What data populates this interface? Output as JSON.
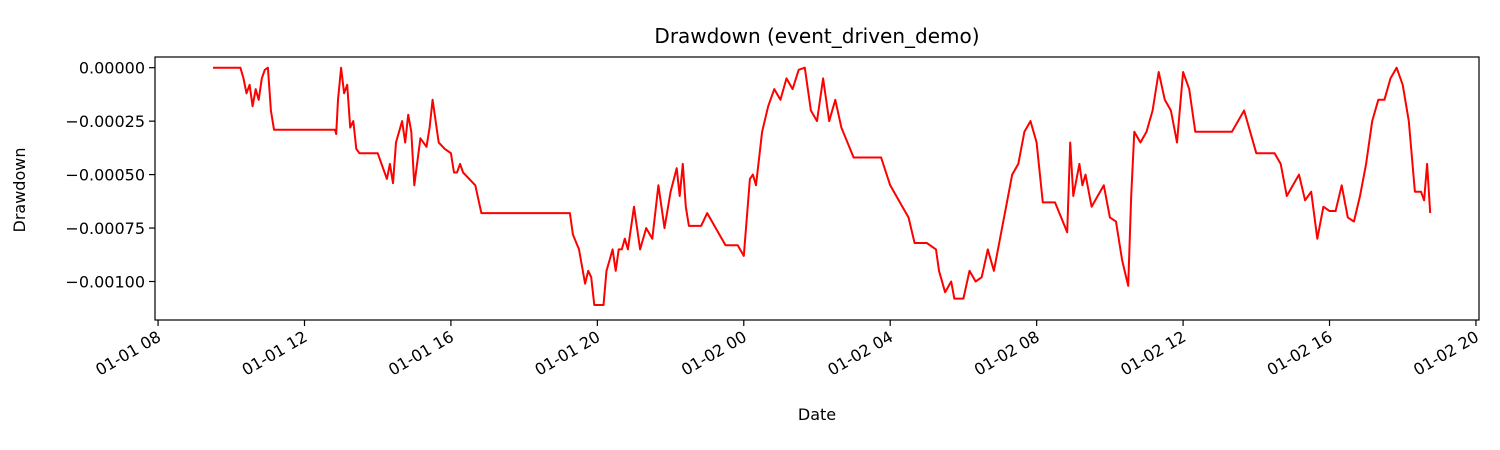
{
  "chart_data": {
    "type": "line",
    "title": "Drawdown (event_driven_demo)",
    "xlabel": "Date",
    "ylabel": "Drawdown",
    "grid": false,
    "legend": "none",
    "x_ticks": [
      "01-01 08",
      "01-01 12",
      "01-01 16",
      "01-01 20",
      "01-02 00",
      "01-02 04",
      "01-02 08",
      "01-02 12",
      "01-02 16",
      "01-02 20"
    ],
    "y_ticks": [
      "0.00000",
      "−0.00025",
      "−0.00050",
      "−0.00075",
      "−0.00100"
    ],
    "xlim": [
      "01-01 07:55",
      "01-02 20:05"
    ],
    "ylim": [
      -0.00118,
      5e-05
    ],
    "series": [
      {
        "color": "#ff0000",
        "x": [
          "01-01 09:30",
          "01-01 10:15",
          "01-01 10:20",
          "01-01 10:25",
          "01-01 10:30",
          "01-01 10:35",
          "01-01 10:40",
          "01-01 10:45",
          "01-01 10:50",
          "01-01 10:55",
          "01-01 11:00",
          "01-01 11:05",
          "01-01 11:10",
          "01-01 11:15",
          "01-01 12:50",
          "01-01 12:52",
          "01-01 12:55",
          "01-01 13:00",
          "01-01 13:05",
          "01-01 13:10",
          "01-01 13:15",
          "01-01 13:20",
          "01-01 13:25",
          "01-01 13:30",
          "01-01 14:00",
          "01-01 14:10",
          "01-01 14:15",
          "01-01 14:20",
          "01-01 14:25",
          "01-01 14:30",
          "01-01 14:40",
          "01-01 14:45",
          "01-01 14:50",
          "01-01 14:55",
          "01-01 15:00",
          "01-01 15:10",
          "01-01 15:20",
          "01-01 15:25",
          "01-01 15:30",
          "01-01 15:40",
          "01-01 15:50",
          "01-01 16:00",
          "01-01 16:05",
          "01-01 16:10",
          "01-01 16:15",
          "01-01 16:20",
          "01-01 16:40",
          "01-01 16:50",
          "01-01 17:00",
          "01-01 19:15",
          "01-01 19:20",
          "01-01 19:30",
          "01-01 19:40",
          "01-01 19:45",
          "01-01 19:50",
          "01-01 19:55",
          "01-01 20:00",
          "01-01 20:10",
          "01-01 20:15",
          "01-01 20:20",
          "01-01 20:25",
          "01-01 20:30",
          "01-01 20:35",
          "01-01 20:40",
          "01-01 20:45",
          "01-01 20:50",
          "01-01 21:00",
          "01-01 21:10",
          "01-01 21:20",
          "01-01 21:30",
          "01-01 21:40",
          "01-01 21:50",
          "01-01 22:00",
          "01-01 22:10",
          "01-01 22:15",
          "01-01 22:20",
          "01-01 22:25",
          "01-01 22:30",
          "01-01 22:40",
          "01-01 22:50",
          "01-01 23:00",
          "01-01 23:30",
          "01-01 23:50",
          "01-02 00:00",
          "01-02 00:10",
          "01-02 00:15",
          "01-02 00:20",
          "01-02 00:30",
          "01-02 00:40",
          "01-02 00:50",
          "01-02 01:00",
          "01-02 01:10",
          "01-02 01:20",
          "01-02 01:30",
          "01-02 01:40",
          "01-02 01:50",
          "01-02 02:00",
          "01-02 02:10",
          "01-02 02:20",
          "01-02 02:30",
          "01-02 02:40",
          "01-02 02:50",
          "01-02 03:00",
          "01-02 03:30",
          "01-02 03:45",
          "01-02 04:00",
          "01-02 04:10",
          "01-02 04:20",
          "01-02 04:30",
          "01-02 04:40",
          "01-02 05:00",
          "01-02 05:15",
          "01-02 05:20",
          "01-02 05:30",
          "01-02 05:40",
          "01-02 05:45",
          "01-02 06:00",
          "01-02 06:10",
          "01-02 06:20",
          "01-02 06:30",
          "01-02 06:40",
          "01-02 06:50",
          "01-02 07:00",
          "01-02 07:10",
          "01-02 07:20",
          "01-02 07:30",
          "01-02 07:40",
          "01-02 07:50",
          "01-02 08:00",
          "01-02 08:10",
          "01-02 08:15",
          "01-02 08:30",
          "01-02 08:50",
          "01-02 08:55",
          "01-02 09:00",
          "01-02 09:10",
          "01-02 09:15",
          "01-02 09:20",
          "01-02 09:30",
          "01-02 09:40",
          "01-02 09:50",
          "01-02 10:00",
          "01-02 10:10",
          "01-02 10:20",
          "01-02 10:30",
          "01-02 10:35",
          "01-02 10:40",
          "01-02 10:50",
          "01-02 11:00",
          "01-02 11:10",
          "01-02 11:20",
          "01-02 11:30",
          "01-02 11:40",
          "01-02 11:50",
          "01-02 12:00",
          "01-02 12:10",
          "01-02 12:20",
          "01-02 12:30",
          "01-02 13:00",
          "01-02 13:20",
          "01-02 13:40",
          "01-02 14:00",
          "01-02 14:30",
          "01-02 14:40",
          "01-02 14:50",
          "01-02 15:00",
          "01-02 15:10",
          "01-02 15:20",
          "01-02 15:30",
          "01-02 15:40",
          "01-02 15:50",
          "01-02 16:00",
          "01-02 16:10",
          "01-02 16:20",
          "01-02 16:30",
          "01-02 16:40",
          "01-02 16:50",
          "01-02 17:00",
          "01-02 17:10",
          "01-02 17:20",
          "01-02 17:30",
          "01-02 17:40",
          "01-02 17:50",
          "01-02 18:00",
          "01-02 18:10",
          "01-02 18:20",
          "01-02 18:30",
          "01-02 18:35",
          "01-02 18:40",
          "01-02 18:45"
        ],
        "y": [
          0,
          0,
          -5e-05,
          -0.00012,
          -8e-05,
          -0.00018,
          -0.0001,
          -0.00015,
          -5e-05,
          -1e-05,
          0,
          -0.0002,
          -0.00029,
          -0.00029,
          -0.00029,
          -0.00031,
          -0.00015,
          0,
          -0.00012,
          -8e-05,
          -0.00028,
          -0.00025,
          -0.00038,
          -0.0004,
          -0.0004,
          -0.00048,
          -0.00052,
          -0.00045,
          -0.00054,
          -0.00035,
          -0.00025,
          -0.00035,
          -0.00022,
          -0.0003,
          -0.00055,
          -0.00033,
          -0.00037,
          -0.00028,
          -0.00015,
          -0.00035,
          -0.00038,
          -0.0004,
          -0.00049,
          -0.00049,
          -0.00045,
          -0.00049,
          -0.00055,
          -0.00068,
          -0.00068,
          -0.00068,
          -0.00078,
          -0.00085,
          -0.00101,
          -0.00095,
          -0.00098,
          -0.00111,
          -0.00111,
          -0.00111,
          -0.00095,
          -0.0009,
          -0.00085,
          -0.00095,
          -0.00085,
          -0.00085,
          -0.0008,
          -0.00085,
          -0.00065,
          -0.00085,
          -0.00075,
          -0.0008,
          -0.00055,
          -0.00075,
          -0.00058,
          -0.00047,
          -0.0006,
          -0.00045,
          -0.00065,
          -0.00074,
          -0.00074,
          -0.00074,
          -0.00068,
          -0.00083,
          -0.00083,
          -0.00088,
          -0.00052,
          -0.0005,
          -0.00055,
          -0.0003,
          -0.00018,
          -0.0001,
          -0.00015,
          -5e-05,
          -0.0001,
          -1e-05,
          0,
          -0.0002,
          -0.00025,
          -5e-05,
          -0.00025,
          -0.00015,
          -0.00028,
          -0.00035,
          -0.00042,
          -0.00042,
          -0.00042,
          -0.00055,
          -0.0006,
          -0.00065,
          -0.0007,
          -0.00082,
          -0.00082,
          -0.00085,
          -0.00095,
          -0.00105,
          -0.001,
          -0.00108,
          -0.00108,
          -0.00095,
          -0.001,
          -0.00098,
          -0.00085,
          -0.00095,
          -0.0008,
          -0.00065,
          -0.0005,
          -0.00045,
          -0.0003,
          -0.00025,
          -0.00035,
          -0.00063,
          -0.00063,
          -0.00063,
          -0.00077,
          -0.00035,
          -0.0006,
          -0.00045,
          -0.00055,
          -0.0005,
          -0.00065,
          -0.0006,
          -0.00055,
          -0.0007,
          -0.00072,
          -0.0009,
          -0.00102,
          -0.0006,
          -0.0003,
          -0.00035,
          -0.0003,
          -0.0002,
          -2e-05,
          -0.00015,
          -0.0002,
          -0.00035,
          -2e-05,
          -0.0001,
          -0.0003,
          -0.0003,
          -0.0003,
          -0.0003,
          -0.0002,
          -0.0004,
          -0.0004,
          -0.00045,
          -0.0006,
          -0.00055,
          -0.0005,
          -0.00062,
          -0.00058,
          -0.0008,
          -0.00065,
          -0.00067,
          -0.00067,
          -0.00055,
          -0.0007,
          -0.00072,
          -0.0006,
          -0.00045,
          -0.00025,
          -0.00015,
          -0.00015,
          -5e-05,
          0,
          -8e-05,
          -0.00025,
          -0.00058,
          -0.00058,
          -0.00062,
          -0.00045,
          -0.00068
        ]
      }
    ]
  }
}
